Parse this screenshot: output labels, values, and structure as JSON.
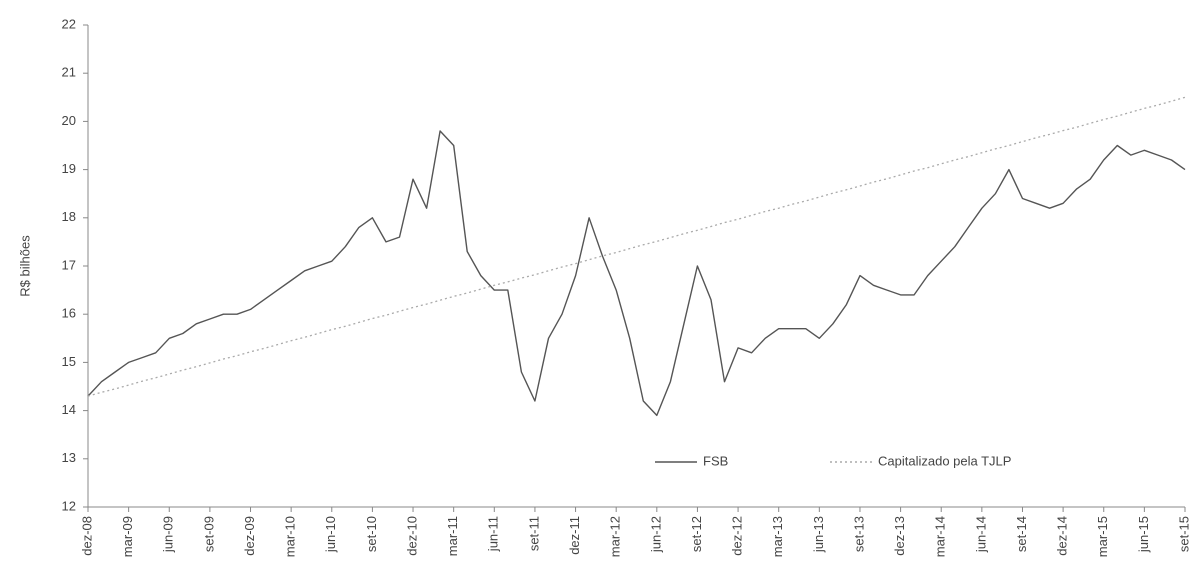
{
  "chart_data": {
    "type": "line",
    "ylabel": "R$ bilhões",
    "categories": [
      "dez-08",
      null,
      null,
      "mar-09",
      null,
      null,
      "jun-09",
      null,
      null,
      "set-09",
      null,
      null,
      "dez-09",
      null,
      null,
      "mar-10",
      null,
      null,
      "jun-10",
      null,
      null,
      "set-10",
      null,
      null,
      "dez-10",
      null,
      null,
      "mar-11",
      null,
      null,
      "jun-11",
      null,
      null,
      "set-11",
      null,
      null,
      "dez-11",
      null,
      null,
      "mar-12",
      null,
      null,
      "jun-12",
      null,
      null,
      "set-12",
      null,
      null,
      "dez-12",
      null,
      null,
      "mar-13",
      null,
      null,
      "jun-13",
      null,
      null,
      "set-13",
      null,
      null,
      "dez-13",
      null,
      null,
      "mar-14",
      null,
      null,
      "jun-14",
      null,
      null,
      "set-14",
      null,
      null,
      "dez-14",
      null,
      null,
      "mar-15",
      null,
      null,
      "jun-15",
      null,
      null,
      "set-15"
    ],
    "series": [
      {
        "name": "FSB",
        "color": "#555555",
        "style": "solid",
        "values": [
          14.3,
          14.6,
          14.8,
          15.0,
          15.1,
          15.2,
          15.5,
          15.6,
          15.8,
          15.9,
          16.0,
          16.0,
          16.1,
          16.3,
          16.5,
          16.7,
          16.9,
          17.0,
          17.1,
          17.4,
          17.8,
          18.0,
          17.5,
          17.6,
          18.8,
          18.2,
          19.8,
          19.5,
          17.3,
          16.8,
          16.5,
          16.5,
          14.8,
          14.2,
          15.5,
          16.0,
          16.8,
          18.0,
          17.2,
          16.5,
          15.5,
          14.2,
          13.9,
          14.6,
          15.8,
          17.0,
          16.3,
          14.6,
          15.3,
          15.2,
          15.5,
          15.7,
          15.7,
          15.7,
          15.5,
          15.8,
          16.2,
          16.8,
          16.6,
          16.5,
          16.4,
          16.4,
          16.8,
          17.1,
          17.4,
          17.8,
          18.2,
          18.5,
          19.0,
          18.4,
          18.3,
          18.2,
          18.3,
          18.6,
          18.8,
          19.2,
          19.5,
          19.3,
          19.4,
          19.3,
          19.2,
          19.0
        ]
      },
      {
        "name": "Capitalizado pela TJLP",
        "color": "#aaaaaa",
        "style": "dotted",
        "values": [
          14.3,
          14.38,
          14.45,
          14.53,
          14.61,
          14.68,
          14.76,
          14.84,
          14.91,
          14.99,
          15.07,
          15.14,
          15.22,
          15.29,
          15.37,
          15.45,
          15.52,
          15.6,
          15.68,
          15.75,
          15.83,
          15.91,
          15.98,
          16.06,
          16.14,
          16.21,
          16.29,
          16.37,
          16.44,
          16.52,
          16.6,
          16.67,
          16.75,
          16.82,
          16.9,
          16.98,
          17.05,
          17.13,
          17.21,
          17.28,
          17.36,
          17.44,
          17.51,
          17.59,
          17.67,
          17.74,
          17.82,
          17.9,
          17.97,
          18.05,
          18.13,
          18.2,
          18.28,
          18.35,
          18.43,
          18.51,
          18.58,
          18.66,
          18.74,
          18.81,
          18.89,
          18.97,
          19.04,
          19.12,
          19.2,
          19.27,
          19.35,
          19.43,
          19.5,
          19.58,
          19.66,
          19.73,
          19.81,
          19.88,
          19.96,
          20.04,
          20.11,
          20.19,
          20.27,
          20.34,
          20.42,
          20.5
        ]
      }
    ],
    "ylim": [
      12,
      22
    ],
    "yticks": [
      12,
      13,
      14,
      15,
      16,
      17,
      18,
      19,
      20,
      21,
      22
    ],
    "grid": false,
    "legend": "lower-right"
  }
}
